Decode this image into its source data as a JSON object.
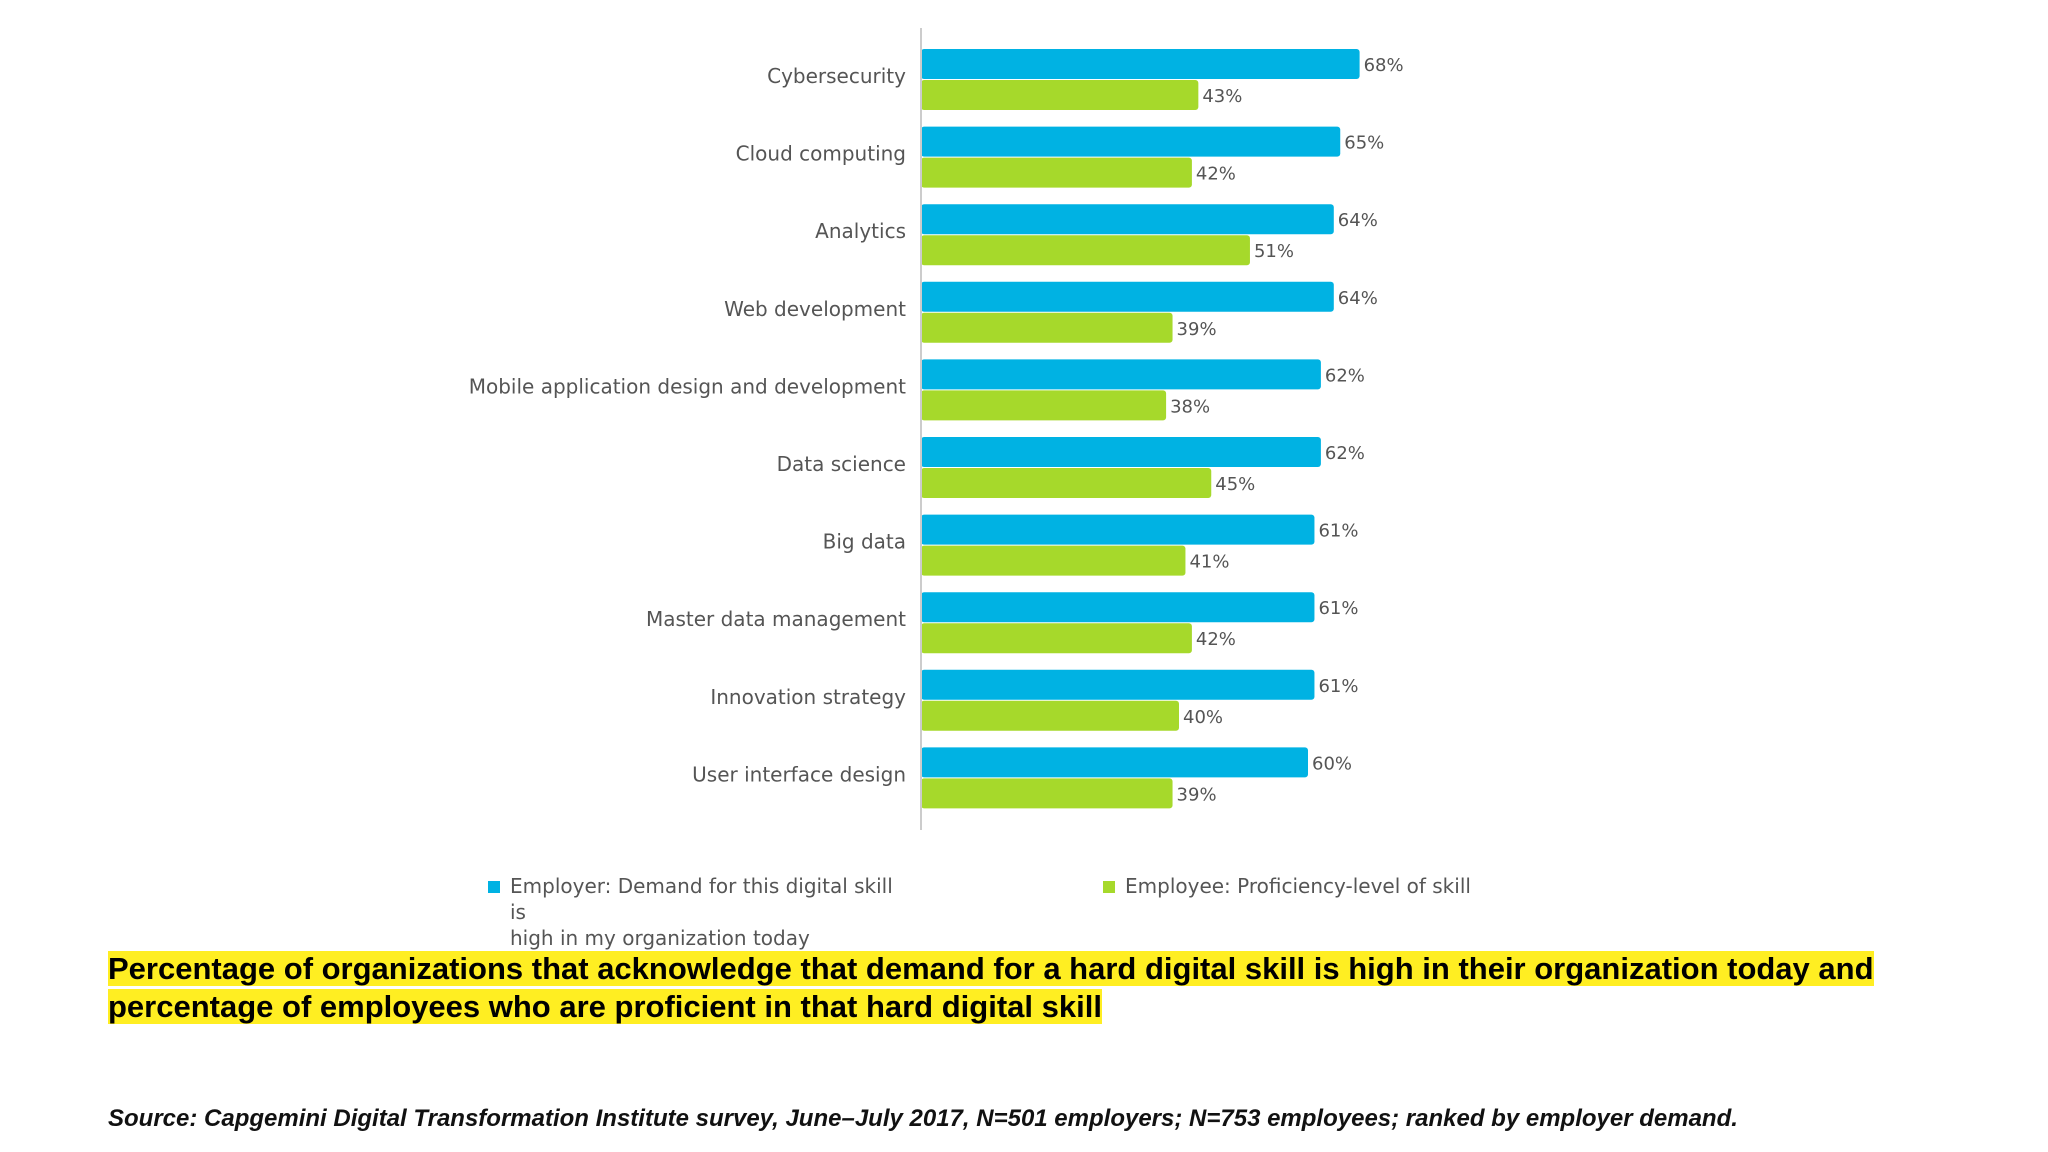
{
  "chart_data": {
    "type": "bar",
    "orientation": "horizontal",
    "categories": [
      "Cybersecurity",
      "Cloud computing",
      "Analytics",
      "Web development",
      "Mobile application design and development",
      "Data science",
      "Big data",
      "Master data management",
      "Innovation strategy",
      "User interface design"
    ],
    "series": [
      {
        "name": "Employer: Demand for this digital skill is high in my organization today",
        "color": "#00b2e3",
        "values": [
          68,
          65,
          64,
          64,
          62,
          62,
          61,
          61,
          61,
          60
        ],
        "labels": [
          "68%",
          "65%",
          "64%",
          "64%",
          "62%",
          "62%",
          "61%",
          "61%",
          "61%",
          "60%"
        ]
      },
      {
        "name": "Employee: Proficiency-level of skill",
        "color": "#a6d92b",
        "values": [
          43,
          42,
          51,
          39,
          38,
          45,
          41,
          42,
          40,
          39
        ],
        "labels": [
          "43%",
          "42%",
          "51%",
          "39%",
          "38%",
          "45%",
          "41%",
          "42%",
          "40%",
          "39%"
        ]
      }
    ],
    "xlim": [
      0,
      100
    ],
    "grid": false,
    "legend_position": "bottom"
  },
  "legend": {
    "employer_line1": "Employer: Demand for this digital skill is",
    "employer_line2": "high in my organization today",
    "employee": "Employee: Proficiency-level of skill"
  },
  "caption": {
    "line1": "Percentage of organizations that acknowledge that demand for a hard digital skill is high in their organization today and",
    "line2": "percentage of employees who are proficient in that hard digital skill"
  },
  "source": "Source: Capgemini Digital Transformation Institute survey, June–July 2017, N=501 employers; N=753 employees; ranked by employer demand."
}
